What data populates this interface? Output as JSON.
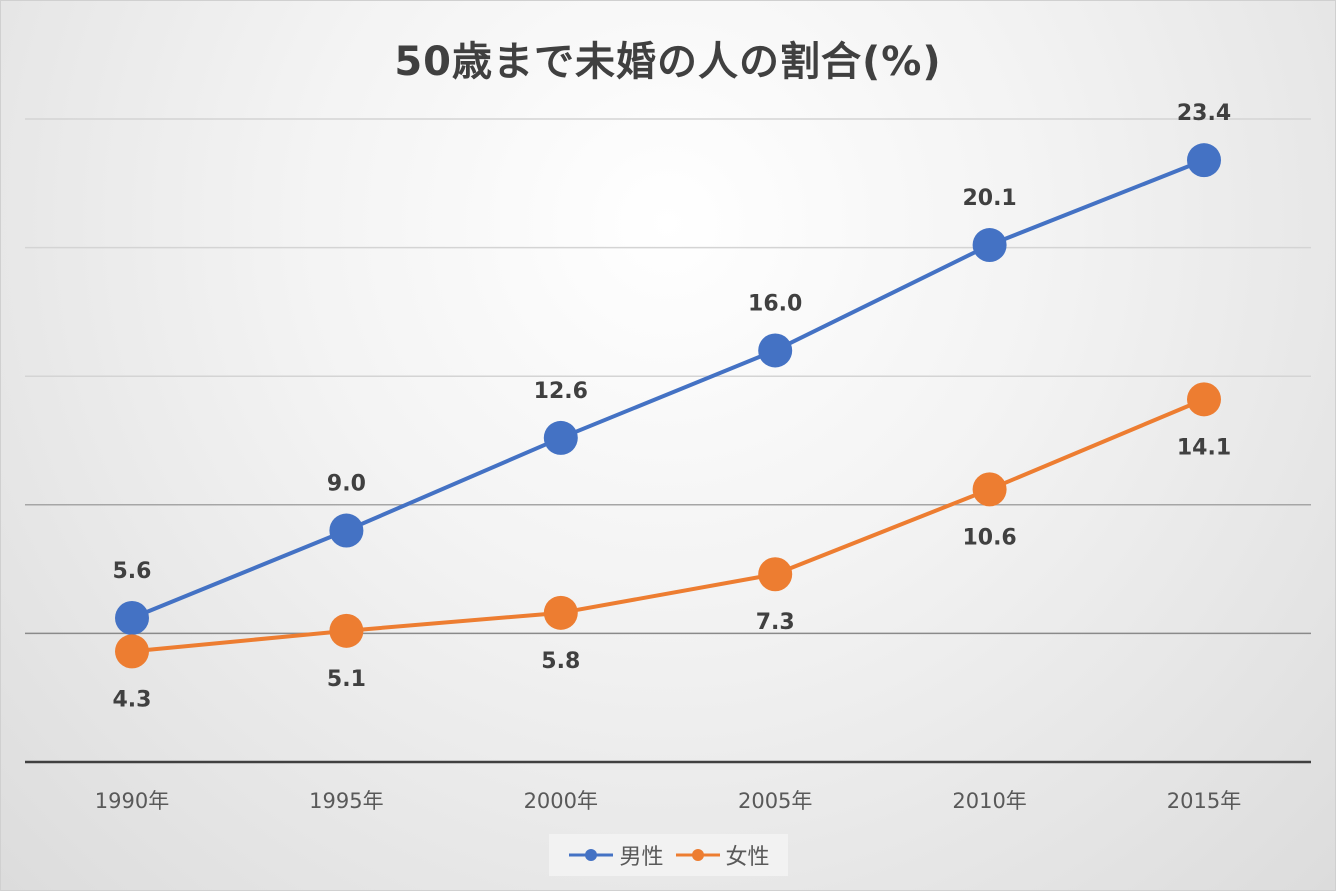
{
  "chart_data": {
    "type": "line",
    "title": "50歳まで未婚の人の割合(%)",
    "categories": [
      "1990年",
      "1995年",
      "2000年",
      "2005年",
      "2010年",
      "2015年"
    ],
    "series": [
      {
        "name": "男性",
        "color": "#4472c4",
        "values": [
          5.6,
          9.0,
          12.6,
          16.0,
          20.1,
          23.4
        ],
        "value_labels": [
          "5.6",
          "9.0",
          "12.6",
          "16.0",
          "20.1",
          "23.4"
        ],
        "label_position": "above"
      },
      {
        "name": "女性",
        "color": "#ed7d31",
        "values": [
          4.3,
          5.1,
          5.8,
          7.3,
          10.6,
          14.1
        ],
        "value_labels": [
          "4.3",
          "5.1",
          "5.8",
          "7.3",
          "10.6",
          "14.1"
        ],
        "label_position": "below"
      }
    ],
    "ylim": [
      0,
      25
    ],
    "grid": true,
    "legend": "bottom",
    "xlabel": "",
    "ylabel": ""
  }
}
